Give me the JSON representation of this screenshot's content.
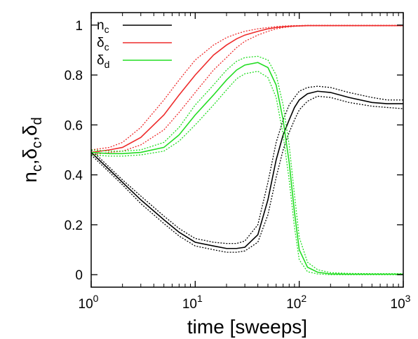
{
  "chart_data": {
    "type": "line",
    "title": "",
    "xlabel": "time [sweeps]",
    "ylabel": {
      "parts": [
        {
          "t": "n",
          "s": "c"
        },
        {
          "t": ",δ",
          "s": "c"
        },
        {
          "t": ",δ",
          "s": "d"
        }
      ]
    },
    "xscale": "log",
    "xlim": [
      1,
      1000
    ],
    "ylim": [
      -0.05,
      1.05
    ],
    "xticks": [
      {
        "base": "10",
        "exp": "0",
        "value": 1
      },
      {
        "base": "10",
        "exp": "1",
        "value": 10
      },
      {
        "base": "10",
        "exp": "2",
        "value": 100
      },
      {
        "base": "10",
        "exp": "3",
        "value": 1000
      }
    ],
    "yticks": [
      {
        "label": "0",
        "value": 0
      },
      {
        "label": "0.2",
        "value": 0.2
      },
      {
        "label": "0.4",
        "value": 0.4
      },
      {
        "label": "0.6",
        "value": 0.6
      },
      {
        "label": "0.8",
        "value": 0.8
      },
      {
        "label": "1",
        "value": 1
      }
    ],
    "grid": false,
    "legend_position": "top-left",
    "x": [
      1,
      1.5,
      2,
      3,
      5,
      7,
      10,
      15,
      20,
      25,
      30,
      40,
      50,
      60,
      70,
      80,
      90,
      100,
      120,
      150,
      200,
      300,
      500,
      700,
      1000
    ],
    "series": [
      {
        "name": "n",
        "sub": "c",
        "color": "#000000",
        "values": [
          0.49,
          0.42,
          0.37,
          0.3,
          0.22,
          0.17,
          0.13,
          0.115,
          0.105,
          0.105,
          0.11,
          0.16,
          0.3,
          0.46,
          0.56,
          0.62,
          0.67,
          0.7,
          0.725,
          0.735,
          0.73,
          0.71,
          0.69,
          0.685,
          0.685
        ],
        "upper": [
          0.5,
          0.43,
          0.38,
          0.315,
          0.235,
          0.185,
          0.145,
          0.13,
          0.125,
          0.125,
          0.135,
          0.2,
          0.37,
          0.53,
          0.62,
          0.68,
          0.71,
          0.735,
          0.75,
          0.755,
          0.75,
          0.73,
          0.71,
          0.7,
          0.7
        ],
        "lower": [
          0.48,
          0.41,
          0.36,
          0.285,
          0.205,
          0.155,
          0.115,
          0.1,
          0.09,
          0.09,
          0.095,
          0.13,
          0.24,
          0.39,
          0.5,
          0.57,
          0.62,
          0.66,
          0.695,
          0.715,
          0.71,
          0.69,
          0.675,
          0.67,
          0.665
        ]
      },
      {
        "name": "δ",
        "sub": "c",
        "color": "#ee2b2b",
        "values": [
          0.49,
          0.5,
          0.51,
          0.55,
          0.64,
          0.72,
          0.8,
          0.88,
          0.92,
          0.945,
          0.96,
          0.975,
          0.985,
          0.99,
          0.993,
          0.995,
          0.996,
          0.997,
          0.998,
          0.998,
          0.998,
          0.998,
          0.998,
          0.998,
          0.998
        ],
        "upper": [
          0.5,
          0.51,
          0.53,
          0.59,
          0.7,
          0.78,
          0.86,
          0.92,
          0.95,
          0.965,
          0.975,
          0.985,
          0.99,
          0.994,
          0.996,
          0.997,
          0.998,
          0.998,
          0.999,
          0.999,
          0.999,
          0.999,
          0.999,
          0.999,
          0.999
        ],
        "lower": [
          0.48,
          0.49,
          0.495,
          0.52,
          0.58,
          0.65,
          0.73,
          0.82,
          0.87,
          0.91,
          0.935,
          0.96,
          0.975,
          0.985,
          0.99,
          0.993,
          0.995,
          0.996,
          0.997,
          0.997,
          0.997,
          0.997,
          0.997,
          0.997,
          0.997
        ]
      },
      {
        "name": "δ",
        "sub": "d",
        "color": "#22dd22",
        "values": [
          0.49,
          0.485,
          0.485,
          0.49,
          0.51,
          0.56,
          0.64,
          0.72,
          0.78,
          0.82,
          0.84,
          0.85,
          0.83,
          0.76,
          0.62,
          0.45,
          0.25,
          0.1,
          0.03,
          0.01,
          0.003,
          0.002,
          0.002,
          0.002,
          0.002
        ],
        "upper": [
          0.5,
          0.495,
          0.495,
          0.5,
          0.53,
          0.59,
          0.68,
          0.76,
          0.82,
          0.855,
          0.87,
          0.875,
          0.86,
          0.8,
          0.68,
          0.52,
          0.32,
          0.15,
          0.05,
          0.02,
          0.008,
          0.005,
          0.004,
          0.004,
          0.004
        ],
        "lower": [
          0.48,
          0.475,
          0.475,
          0.48,
          0.495,
          0.535,
          0.6,
          0.68,
          0.74,
          0.785,
          0.805,
          0.815,
          0.79,
          0.71,
          0.56,
          0.38,
          0.19,
          0.06,
          0.012,
          0.003,
          0.0,
          0.0,
          0.0,
          0.0,
          0.0
        ]
      }
    ]
  }
}
